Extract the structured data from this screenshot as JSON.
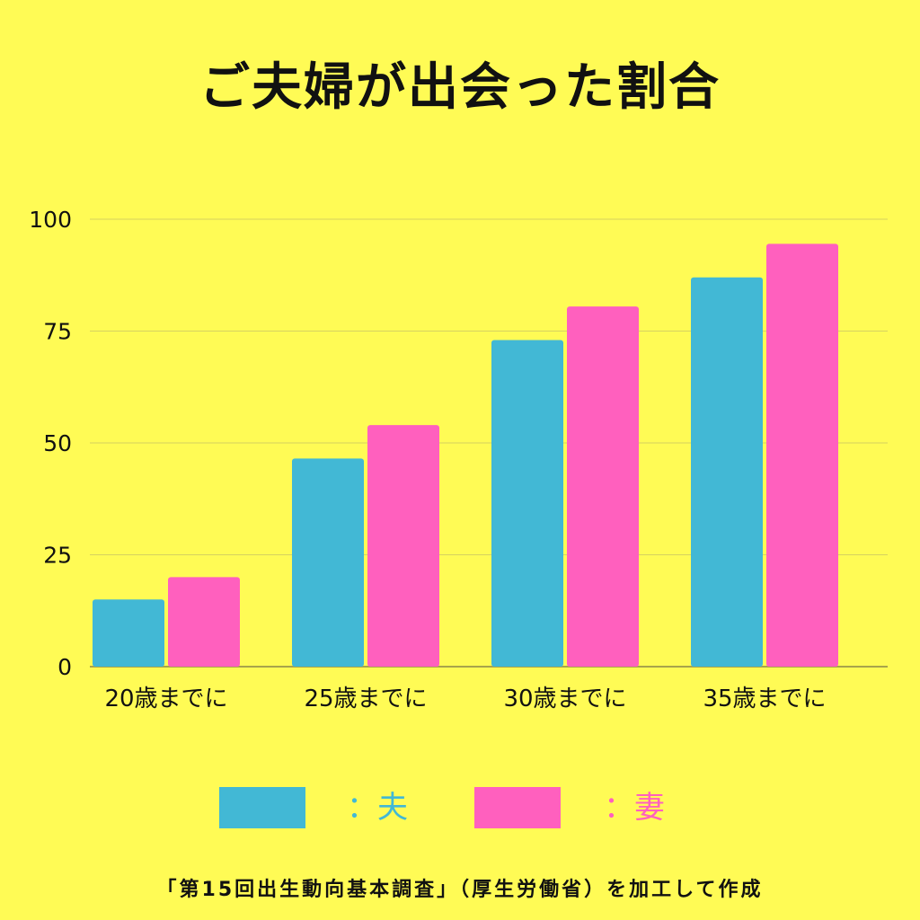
{
  "chart_data": {
    "type": "bar",
    "title": "ご夫婦が出会った割合",
    "categories": [
      "20歳までに",
      "25歳までに",
      "30歳までに",
      "35歳までに"
    ],
    "series": [
      {
        "name": "：夫",
        "color": "#42B8D5",
        "values": [
          15,
          46.5,
          73,
          87
        ]
      },
      {
        "name": "：妻",
        "color": "#FF60BE",
        "values": [
          20,
          54,
          80.5,
          94.5
        ]
      }
    ],
    "yticks": [
      0,
      25,
      50,
      75,
      100
    ],
    "ylim": [
      0,
      100
    ],
    "grid": true,
    "legend_position": "bottom"
  },
  "source_note": "「第15回出生動向基本調査」（厚生労働省）を加工して作成",
  "colors": {
    "background": "#FFFB55",
    "husband": "#42B8D5",
    "wife": "#FF60BE"
  }
}
